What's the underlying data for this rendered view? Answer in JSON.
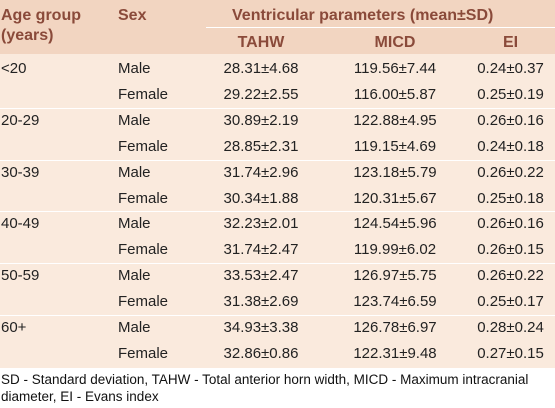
{
  "header": {
    "age_group": "Age group",
    "age_unit": "(years)",
    "sex": "Sex",
    "ventricular": "Ventricular parameters (mean±SD)",
    "columns": [
      "TAHW",
      "MICD",
      "EI"
    ]
  },
  "rows": [
    {
      "age": "<20",
      "sex": "Male",
      "tahw": "28.31±4.68",
      "micd": "119.56±7.44",
      "ei": "0.24±0.37"
    },
    {
      "age": "",
      "sex": "Female",
      "tahw": "29.22±2.55",
      "micd": "116.00±5.87",
      "ei": "0.25±0.19"
    },
    {
      "age": "20-29",
      "sex": "Male",
      "tahw": "30.89±2.19",
      "micd": "122.88±4.95",
      "ei": "0.26±0.16"
    },
    {
      "age": "",
      "sex": "Female",
      "tahw": "28.85±2.31",
      "micd": "119.15±4.69",
      "ei": "0.24±0.18"
    },
    {
      "age": "30-39",
      "sex": "Male",
      "tahw": "31.74±2.96",
      "micd": "123.18±5.79",
      "ei": "0.26±0.22"
    },
    {
      "age": "",
      "sex": "Female",
      "tahw": "30.34±1.88",
      "micd": "120.31±5.67",
      "ei": "0.25±0.18"
    },
    {
      "age": "40-49",
      "sex": "Male",
      "tahw": "32.23±2.01",
      "micd": "124.54±5.96",
      "ei": "0.26±0.16"
    },
    {
      "age": "",
      "sex": "Female",
      "tahw": "31.74±2.47",
      "micd": "119.99±6.02",
      "ei": "0.26±0.15"
    },
    {
      "age": "50-59",
      "sex": "Male",
      "tahw": "33.53±2.47",
      "micd": "126.97±5.75",
      "ei": "0.26±0.22"
    },
    {
      "age": "",
      "sex": "Female",
      "tahw": "31.38±2.69",
      "micd": "123.74±6.59",
      "ei": "0.25±0.17"
    },
    {
      "age": "60+",
      "sex": "Male",
      "tahw": "34.93±3.38",
      "micd": "126.78±6.97",
      "ei": "0.28±0.24"
    },
    {
      "age": "",
      "sex": "Female",
      "tahw": "32.86±0.86",
      "micd": "122.31±9.48",
      "ei": "0.27±0.15"
    }
  ],
  "footer": "SD - Standard deviation, TAHW - Total anterior horn width, MICD - Maximum intracranial diameter, EI - Evans index",
  "colors": {
    "header_bg": "#f2d5c1",
    "body_bg": "#faeadd",
    "header_text": "#8a4a3a"
  }
}
